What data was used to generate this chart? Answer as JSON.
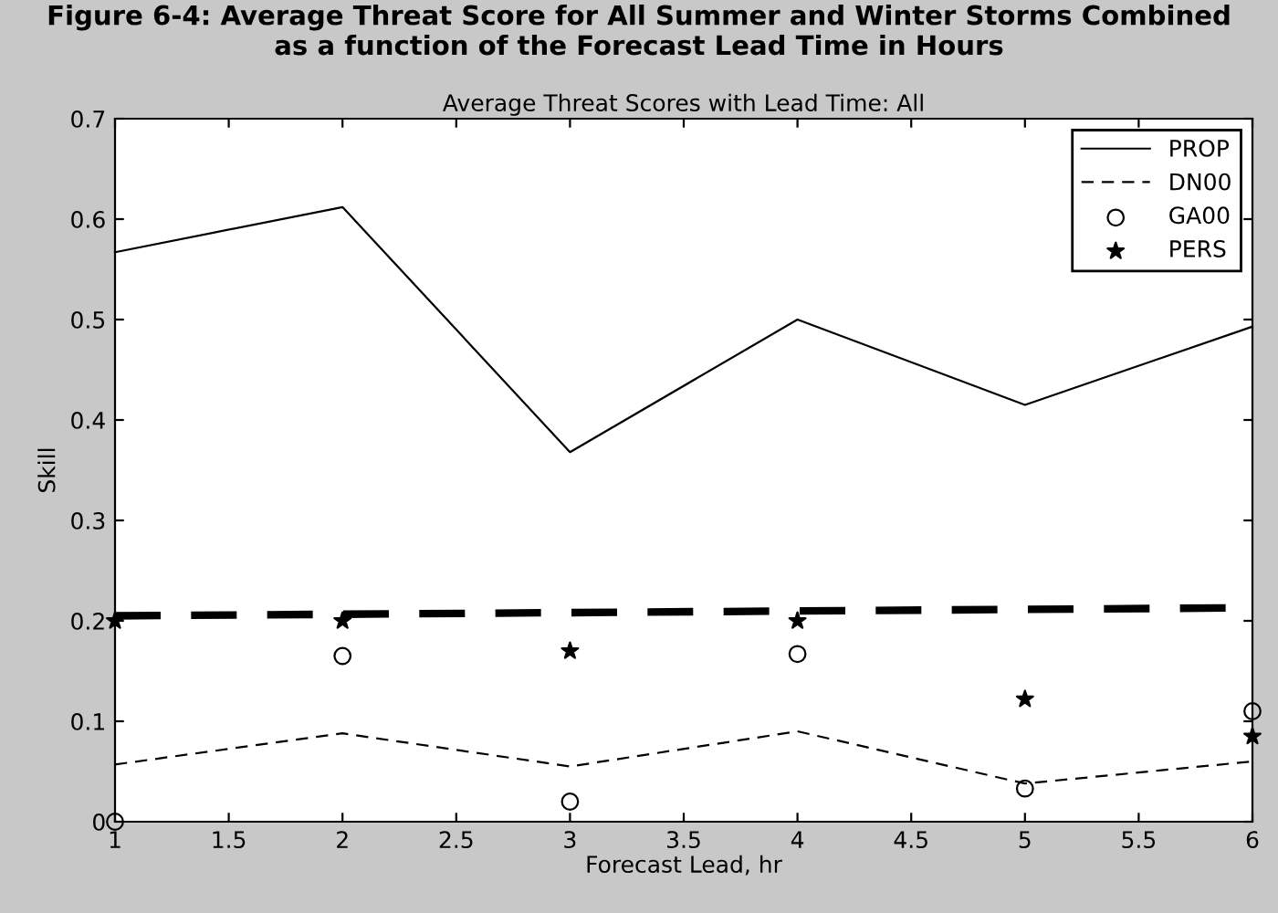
{
  "chart_data": {
    "type": "line",
    "title": "Figure 6-4: Average Threat Score for All Summer and Winter Storms Combined\nas a function of the Forecast Lead Time in Hours",
    "subtitle": "Average Threat Scores with Lead Time: All",
    "xlabel": "Forecast Lead, hr",
    "ylabel": "Skill",
    "x": [
      1,
      2,
      3,
      4,
      5,
      6
    ],
    "series": [
      {
        "name": "PROP",
        "color": "#000000",
        "line_style": "solid",
        "marker": "none",
        "values": [
          0.567,
          0.612,
          0.368,
          0.5,
          0.415,
          0.493
        ]
      },
      {
        "name": "DN00",
        "color": "#000000",
        "line_style": "dashed",
        "marker": "none",
        "values": [
          0.057,
          0.088,
          0.055,
          0.09,
          0.038,
          0.06
        ]
      },
      {
        "name": "GA00",
        "type": "scatter",
        "color": "#000000",
        "marker": "circle",
        "values": [
          0.0,
          0.165,
          0.02,
          0.167,
          0.033,
          0.11
        ]
      },
      {
        "name": "PERS",
        "type": "scatter",
        "color": "#000000",
        "marker": "star",
        "values": [
          0.2,
          0.2,
          0.17,
          0.2,
          0.122,
          0.085
        ]
      },
      {
        "color": "#000000",
        "line_style": "dashed",
        "marker": "none",
        "x": [
          1,
          6
        ],
        "values": [
          0.205,
          0.213
        ]
      }
    ],
    "xlim": [
      1,
      6
    ],
    "xticks": [
      1,
      1.5,
      2,
      2.5,
      3,
      3.5,
      4,
      4.5,
      5,
      5.5,
      6
    ],
    "ylim": [
      0,
      0.7
    ],
    "yticks": [
      0,
      0.1,
      0.2,
      0.3,
      0.4,
      0.5,
      0.6,
      0.7
    ],
    "grid": false,
    "legend": "top right"
  }
}
